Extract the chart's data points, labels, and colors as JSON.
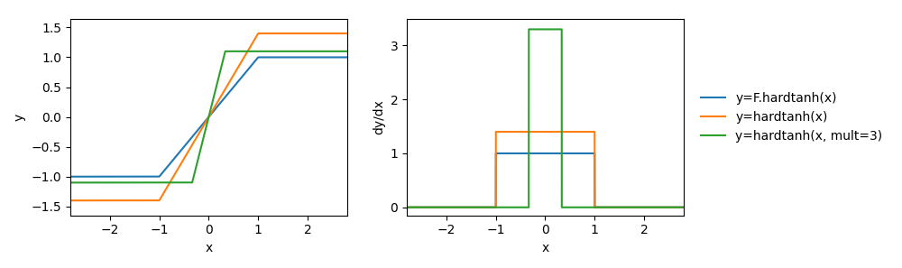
{
  "xlabel": "x",
  "ylabel_left": "y",
  "ylabel_right": "dy/dx",
  "colors": {
    "blue": "#1f77b4",
    "orange": "#ff7f0e",
    "green": "#2ca02c"
  },
  "legend_labels": [
    "y=F.hardtanh(x)",
    "y=hardtanh(x)",
    "y=hardtanh(x, mult=3)"
  ],
  "figsize": [
    10.0,
    2.97
  ],
  "dpi": 100,
  "xlim": [
    -2.8,
    2.8
  ],
  "ylim_left": [
    -1.65,
    1.65
  ],
  "ylim_right": [
    -0.15,
    3.5
  ],
  "blue_sat": 1.0,
  "blue_linear_lo": -1.0,
  "blue_linear_hi": 1.0,
  "orange_sat": 1.4,
  "orange_linear_lo": -1.0,
  "orange_linear_hi": 1.0,
  "green_sat": 1.1,
  "green_linear_lo": -0.3333,
  "green_linear_hi": 0.3333,
  "blue_slope": 1.0,
  "orange_slope": 1.4,
  "green_slope": 3.3
}
